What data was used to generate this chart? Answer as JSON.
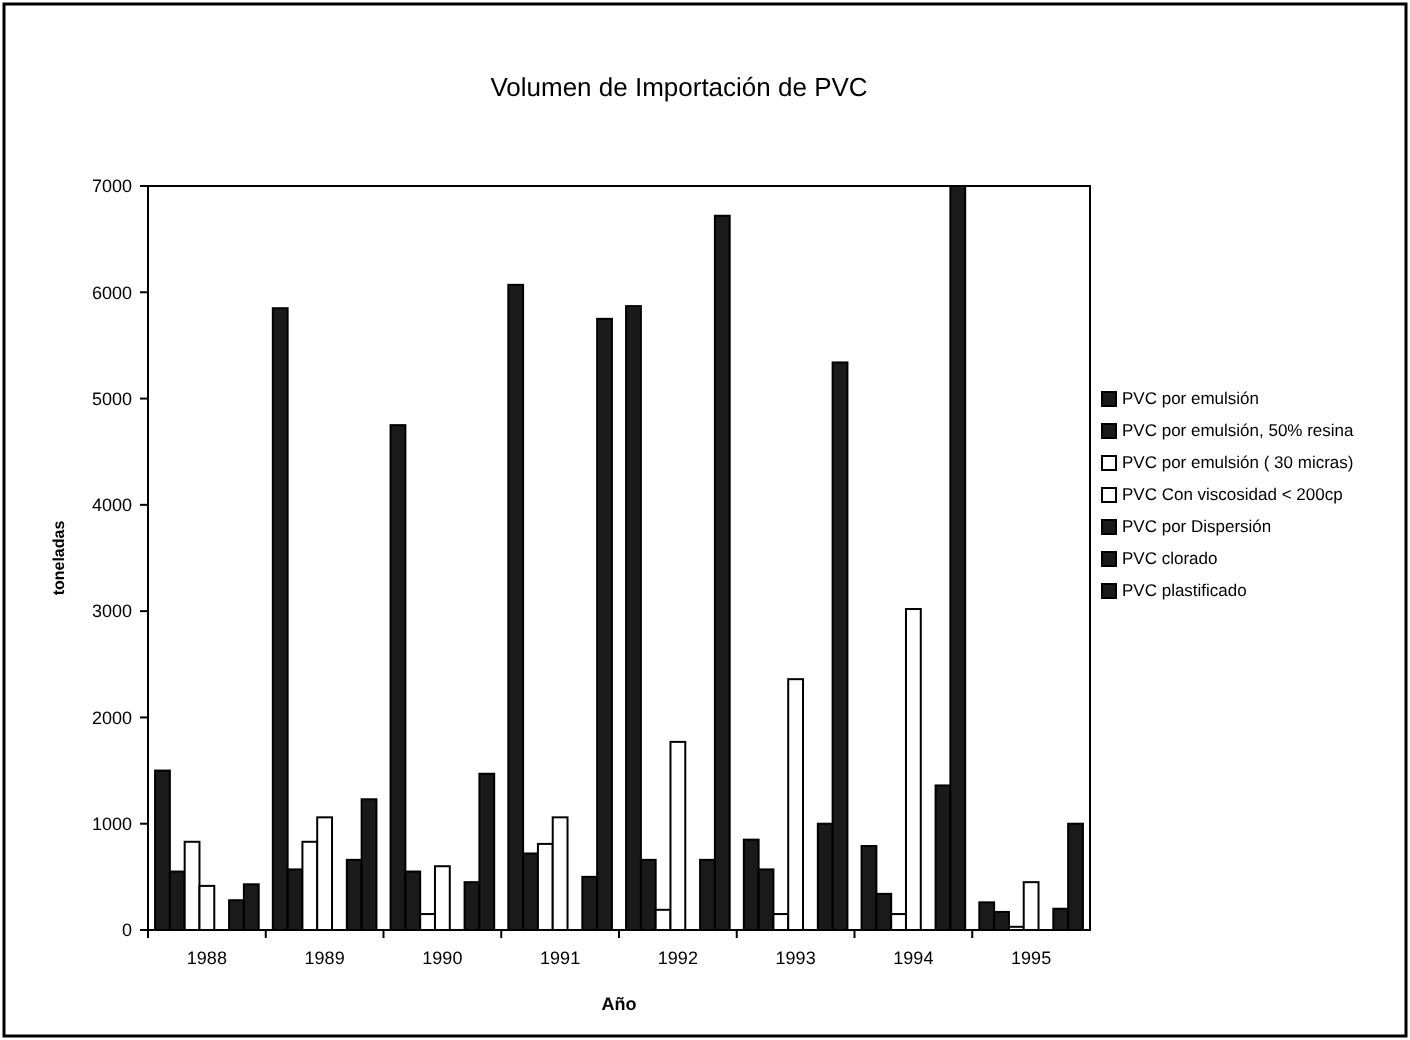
{
  "chart_data": {
    "type": "bar",
    "title": "Volumen de Importación de PVC",
    "xlabel": "Año",
    "ylabel": "toneladas",
    "categories": [
      "1988",
      "1989",
      "1990",
      "1991",
      "1992",
      "1993",
      "1994",
      "1995"
    ],
    "series": [
      {
        "name": "PVC por emulsión",
        "color": "#1a1a1a",
        "values": [
          1500,
          5850,
          4750,
          6070,
          5870,
          850,
          790,
          260
        ]
      },
      {
        "name": "PVC por emulsión, 50% resina",
        "color": "#1a1a1a",
        "values": [
          550,
          570,
          550,
          720,
          660,
          570,
          340,
          170
        ]
      },
      {
        "name": "PVC por emulsión ( 30 micras)",
        "color": "#ffffff",
        "values": [
          830,
          830,
          150,
          810,
          190,
          150,
          150,
          30
        ]
      },
      {
        "name": "PVC Con viscosidad < 200cp",
        "color": "#ffffff",
        "values": [
          415,
          1060,
          600,
          1060,
          1770,
          2360,
          3020,
          450
        ]
      },
      {
        "name": "PVC por Dispersión",
        "color": "#1a1a1a",
        "values": [
          0,
          0,
          0,
          0,
          0,
          0,
          0,
          0
        ]
      },
      {
        "name": "PVC clorado",
        "color": "#1a1a1a",
        "values": [
          280,
          660,
          450,
          500,
          660,
          1000,
          1360,
          200
        ]
      },
      {
        "name": "PVC plastificado",
        "color": "#1a1a1a",
        "values": [
          430,
          1230,
          1470,
          5750,
          6720,
          5340,
          7000,
          1000
        ]
      }
    ],
    "ylim": [
      0,
      7000
    ],
    "yticks": [
      0,
      1000,
      2000,
      3000,
      4000,
      5000,
      6000,
      7000
    ],
    "grid": false,
    "legend": "right"
  }
}
